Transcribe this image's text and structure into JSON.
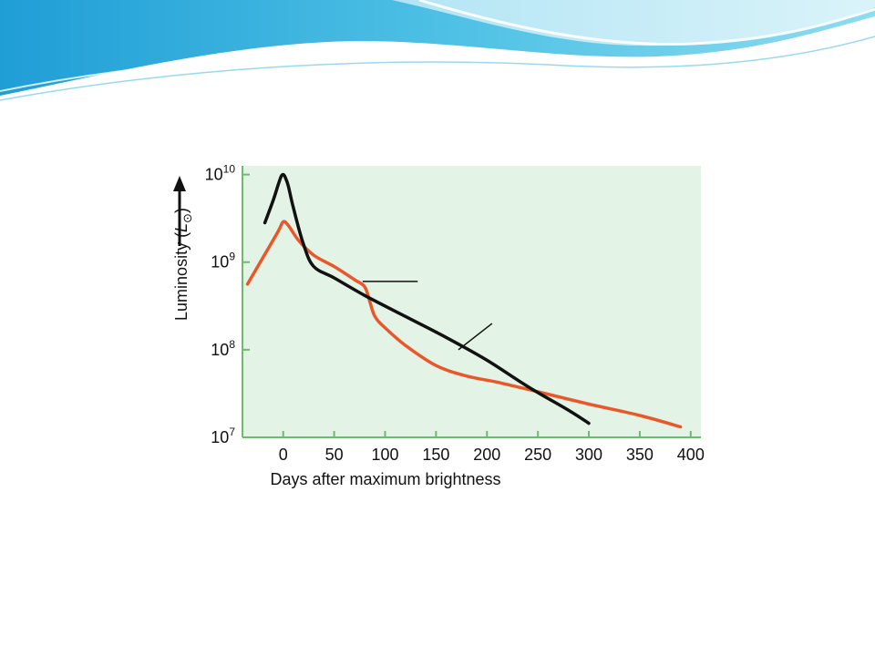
{
  "chart_data": {
    "type": "line",
    "xlabel": "Days after maximum brightness",
    "ylabel_text": "Luminosity (",
    "ylabel_symbol": "L",
    "ylabel_subscript": "⊙",
    "ylabel_close": ")",
    "xlim": [
      -40,
      410
    ],
    "ylim_log10": [
      7,
      10.1
    ],
    "y_scale": "log",
    "x_ticks": [
      {
        "value": 0,
        "label": "0"
      },
      {
        "value": 50,
        "label": "50"
      },
      {
        "value": 100,
        "label": "100"
      },
      {
        "value": 150,
        "label": "150"
      },
      {
        "value": 200,
        "label": "200"
      },
      {
        "value": 250,
        "label": "250"
      },
      {
        "value": 300,
        "label": "300"
      },
      {
        "value": 350,
        "label": "350"
      },
      {
        "value": 400,
        "label": "400"
      }
    ],
    "y_ticks": [
      {
        "exp": 7,
        "base": "10",
        "sup": "7"
      },
      {
        "exp": 8,
        "base": "10",
        "sup": "8"
      },
      {
        "exp": 9,
        "base": "10",
        "sup": "9"
      },
      {
        "exp": 10,
        "base": "10",
        "sup": "10"
      }
    ],
    "grid": false,
    "series": [
      {
        "color": "#e8582a",
        "x": [
          -35,
          -20,
          -5,
          0,
          5,
          15,
          30,
          50,
          70,
          80,
          85,
          90,
          100,
          120,
          150,
          180,
          210,
          250,
          300,
          350,
          390
        ],
        "log10_y": [
          8.75,
          9.05,
          9.35,
          9.46,
          9.42,
          9.25,
          9.08,
          8.95,
          8.8,
          8.72,
          8.55,
          8.38,
          8.25,
          8.05,
          7.82,
          7.7,
          7.63,
          7.52,
          7.38,
          7.25,
          7.12
        ]
      },
      {
        "color": "#111111",
        "x": [
          -18,
          -10,
          -5,
          -2,
          0,
          2,
          5,
          10,
          20,
          30,
          50,
          80,
          120,
          160,
          200,
          240,
          280,
          300
        ],
        "log10_y": [
          9.45,
          9.7,
          9.88,
          9.98,
          10.0,
          9.97,
          9.87,
          9.62,
          9.2,
          8.95,
          8.82,
          8.62,
          8.38,
          8.14,
          7.88,
          7.58,
          7.31,
          7.16
        ]
      }
    ],
    "annotations": [
      {
        "x1": 78,
        "log10_y1": 8.78,
        "x2": 132,
        "log10_y2": 8.78
      },
      {
        "x1": 172,
        "log10_y1": 8.0,
        "x2": 205,
        "log10_y2": 8.3
      }
    ],
    "colors": {
      "plot_background": "#e3f3e6",
      "axis_line": "#6dbb6f"
    }
  }
}
